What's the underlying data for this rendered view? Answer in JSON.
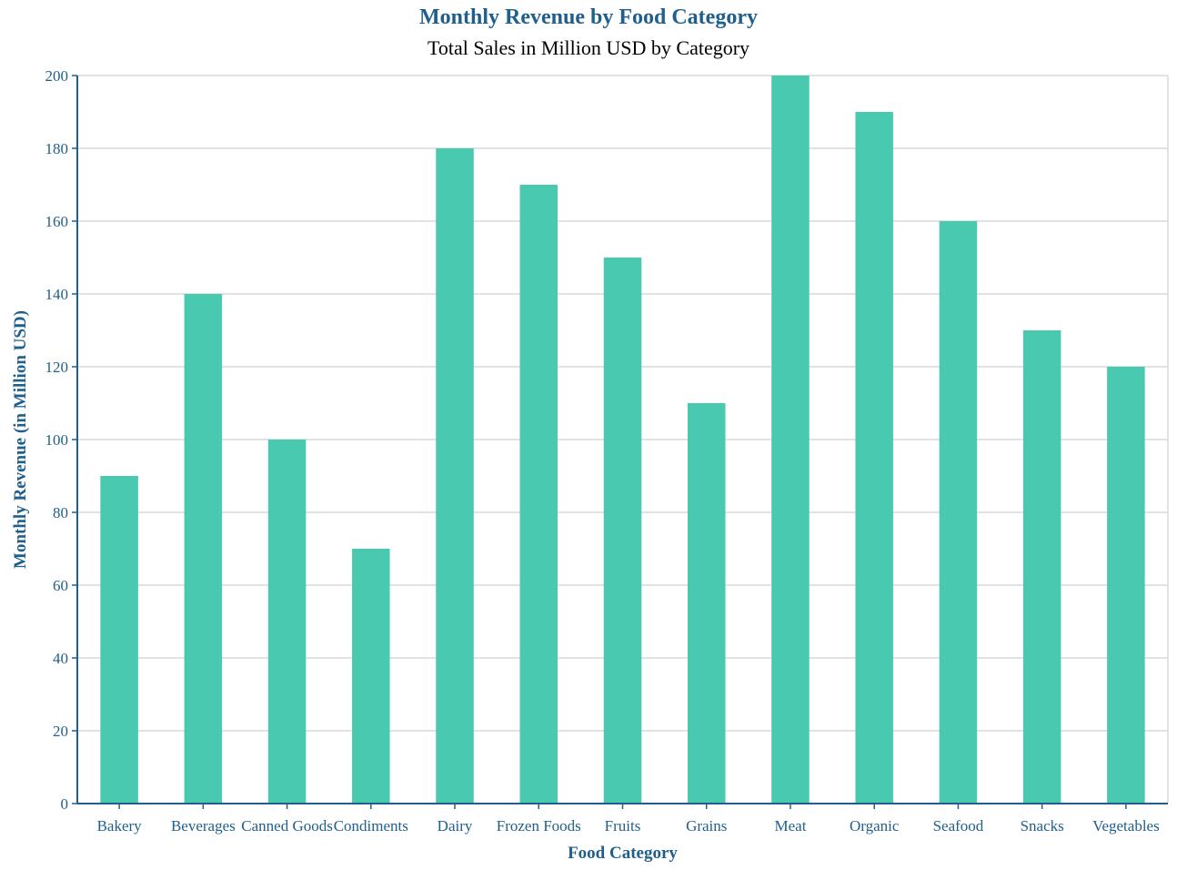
{
  "chart_data": {
    "type": "bar",
    "title": "Monthly Revenue by Food Category",
    "subtitle": "Total Sales in Million USD by Category",
    "xlabel": "Food Category",
    "ylabel": "Monthly Revenue (in Million USD)",
    "categories": [
      "Bakery",
      "Beverages",
      "Canned Goods",
      "Condiments",
      "Dairy",
      "Frozen Foods",
      "Fruits",
      "Grains",
      "Meat",
      "Organic",
      "Seafood",
      "Snacks",
      "Vegetables"
    ],
    "values": [
      90,
      140,
      100,
      70,
      180,
      170,
      150,
      110,
      200,
      190,
      160,
      130,
      120
    ],
    "ylim": [
      0,
      200
    ],
    "yticks": [
      0,
      20,
      40,
      60,
      80,
      100,
      120,
      140,
      160,
      180,
      200
    ],
    "grid": true,
    "legend": "none",
    "colors": {
      "bar": "#48c9b0",
      "axis": "#1f5f8b",
      "grid": "#d9d9d9",
      "title": "#1f5f8b",
      "subtitle": "#000000"
    }
  }
}
